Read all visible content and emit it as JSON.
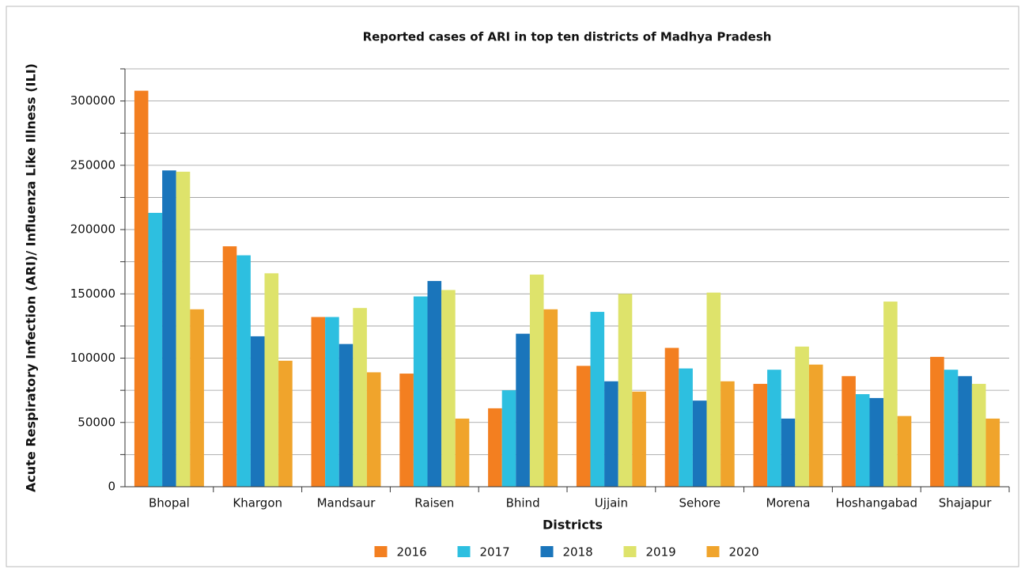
{
  "chart_data": {
    "type": "bar",
    "title": "Reported cases of ARI in top ten districts of Madhya Pradesh",
    "x_label": "Districts",
    "y_label": "Acute Respiratory Infection (ARI)/ Influenza Like Illness (ILI)",
    "categories": [
      "Bhopal",
      "Khargon",
      "Mandsaur",
      "Raisen",
      "Bhind",
      "Ujjain",
      "Sehore",
      "Morena",
      "Hoshangabad",
      "Shajapur"
    ],
    "series": [
      {
        "name": "2016",
        "color": "#f37f20",
        "values": [
          308000,
          187000,
          132000,
          88000,
          61000,
          94000,
          108000,
          80000,
          86000,
          101000
        ]
      },
      {
        "name": "2017",
        "color": "#2dbfe0",
        "values": [
          213000,
          180000,
          132000,
          148000,
          75000,
          136000,
          92000,
          91000,
          72000,
          91000
        ]
      },
      {
        "name": "2018",
        "color": "#1a75bb",
        "values": [
          246000,
          117000,
          111000,
          160000,
          119000,
          82000,
          67000,
          53000,
          69000,
          86000
        ]
      },
      {
        "name": "2019",
        "color": "#dee36b",
        "values": [
          245000,
          166000,
          139000,
          153000,
          165000,
          150000,
          151000,
          109000,
          144000,
          80000
        ]
      },
      {
        "name": "2020",
        "color": "#f0a42c",
        "values": [
          138000,
          98000,
          89000,
          53000,
          138000,
          74000,
          82000,
          95000,
          55000,
          53000
        ]
      }
    ],
    "ylim": [
      0,
      325000
    ],
    "yticks": [
      0,
      50000,
      100000,
      150000,
      200000,
      250000,
      300000
    ],
    "minor_yticks": [
      25000,
      75000,
      125000,
      175000,
      225000,
      275000,
      325000
    ],
    "grid": true,
    "legend": "bottom"
  }
}
